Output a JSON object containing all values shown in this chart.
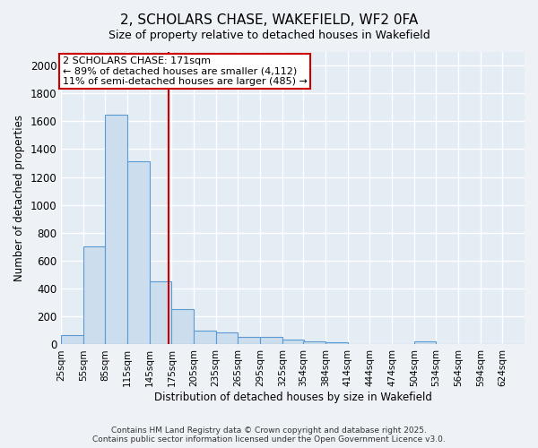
{
  "title1": "2, SCHOLARS CHASE, WAKEFIELD, WF2 0FA",
  "title2": "Size of property relative to detached houses in Wakefield",
  "xlabel": "Distribution of detached houses by size in Wakefield",
  "ylabel": "Number of detached properties",
  "bins": [
    25,
    55,
    85,
    115,
    145,
    175,
    205,
    235,
    265,
    295,
    325,
    354,
    384,
    414,
    444,
    474,
    504,
    534,
    564,
    594,
    624
  ],
  "heights": [
    70,
    700,
    1650,
    1310,
    450,
    255,
    100,
    85,
    55,
    55,
    35,
    25,
    15,
    0,
    0,
    0,
    20,
    0,
    0,
    0,
    0
  ],
  "bar_color": "#ccdded",
  "bar_edge_color": "#5b9bd5",
  "red_line_x": 171,
  "annotation_title": "2 SCHOLARS CHASE: 171sqm",
  "annotation_line1": "← 89% of detached houses are smaller (4,112)",
  "annotation_line2": "11% of semi-detached houses are larger (485) →",
  "annotation_box_color": "#ffffff",
  "annotation_border_color": "#cc0000",
  "footer1": "Contains HM Land Registry data © Crown copyright and database right 2025.",
  "footer2": "Contains public sector information licensed under the Open Government Licence v3.0.",
  "background_color": "#eef2f6",
  "plot_bg_color": "#e4ecf4",
  "grid_color": "#ffffff",
  "ylim": [
    0,
    2100
  ],
  "yticks": [
    0,
    200,
    400,
    600,
    800,
    1000,
    1200,
    1400,
    1600,
    1800,
    2000
  ],
  "bin_width": 30,
  "xlim": [
    25,
    654
  ]
}
